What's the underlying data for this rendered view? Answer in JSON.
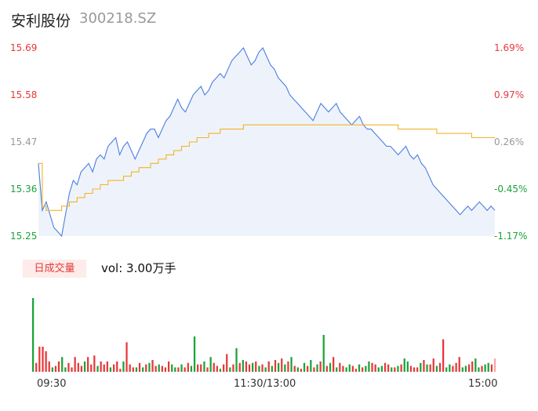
{
  "header": {
    "name": "安利股份",
    "code": "300218.SZ"
  },
  "colors": {
    "up": "#e5393b",
    "down": "#1aa33a",
    "price_line": "#4a7fe0",
    "avg_line": "#f2b32a",
    "neutral": "#999999"
  },
  "chart_data": [
    {
      "type": "line",
      "title": "",
      "y_left_ticks": [
        "15.69",
        "15.58",
        "15.47",
        "15.36",
        "15.25"
      ],
      "y_right_ticks": [
        "1.69%",
        "0.97%",
        "0.26%",
        "-0.45%",
        "-1.17%"
      ],
      "ylim": [
        15.25,
        15.69
      ],
      "x_ticks": [
        "09:30",
        "11:30/13:00",
        "15:00"
      ],
      "series": [
        {
          "key": "price",
          "values": [
            15.42,
            15.31,
            15.33,
            15.3,
            15.27,
            15.26,
            15.25,
            15.3,
            15.35,
            15.38,
            15.37,
            15.4,
            15.41,
            15.42,
            15.4,
            15.43,
            15.44,
            15.43,
            15.46,
            15.47,
            15.48,
            15.44,
            15.46,
            15.47,
            15.45,
            15.43,
            15.45,
            15.47,
            15.49,
            15.5,
            15.5,
            15.48,
            15.5,
            15.52,
            15.53,
            15.55,
            15.57,
            15.55,
            15.54,
            15.56,
            15.58,
            15.59,
            15.6,
            15.58,
            15.59,
            15.61,
            15.62,
            15.63,
            15.62,
            15.64,
            15.66,
            15.67,
            15.68,
            15.69,
            15.67,
            15.65,
            15.66,
            15.68,
            15.69,
            15.67,
            15.65,
            15.64,
            15.62,
            15.61,
            15.6,
            15.58,
            15.57,
            15.56,
            15.55,
            15.54,
            15.53,
            15.52,
            15.54,
            15.56,
            15.55,
            15.54,
            15.55,
            15.56,
            15.54,
            15.53,
            15.52,
            15.51,
            15.52,
            15.53,
            15.51,
            15.5,
            15.5,
            15.49,
            15.48,
            15.47,
            15.46,
            15.46,
            15.45,
            15.44,
            15.45,
            15.46,
            15.44,
            15.43,
            15.44,
            15.42,
            15.41,
            15.39,
            15.37,
            15.36,
            15.35,
            15.34,
            15.33,
            15.32,
            15.31,
            15.3,
            15.31,
            15.32,
            15.31,
            15.32,
            15.33,
            15.32,
            15.31,
            15.32,
            15.31
          ]
        },
        {
          "key": "average",
          "values": [
            15.42,
            15.32,
            15.31,
            15.31,
            15.31,
            15.31,
            15.32,
            15.32,
            15.33,
            15.33,
            15.34,
            15.34,
            15.35,
            15.35,
            15.36,
            15.36,
            15.37,
            15.37,
            15.38,
            15.38,
            15.38,
            15.38,
            15.39,
            15.39,
            15.4,
            15.4,
            15.41,
            15.41,
            15.41,
            15.42,
            15.42,
            15.43,
            15.43,
            15.44,
            15.44,
            15.45,
            15.45,
            15.46,
            15.46,
            15.47,
            15.47,
            15.48,
            15.48,
            15.48,
            15.49,
            15.49,
            15.49,
            15.5,
            15.5,
            15.5,
            15.5,
            15.5,
            15.5,
            15.51,
            15.51,
            15.51,
            15.51,
            15.51,
            15.51,
            15.51,
            15.51,
            15.51,
            15.51,
            15.51,
            15.51,
            15.51,
            15.51,
            15.51,
            15.51,
            15.51,
            15.51,
            15.51,
            15.51,
            15.51,
            15.51,
            15.51,
            15.51,
            15.51,
            15.51,
            15.51,
            15.51,
            15.51,
            15.51,
            15.51,
            15.51,
            15.51,
            15.51,
            15.51,
            15.51,
            15.51,
            15.51,
            15.51,
            15.51,
            15.5,
            15.5,
            15.5,
            15.5,
            15.5,
            15.5,
            15.5,
            15.5,
            15.5,
            15.5,
            15.49,
            15.49,
            15.49,
            15.49,
            15.49,
            15.49,
            15.49,
            15.49,
            15.49,
            15.48,
            15.48,
            15.48,
            15.48,
            15.48,
            15.48,
            15.48
          ]
        }
      ]
    },
    {
      "type": "bar",
      "title": "日成交量",
      "label": "vol: 3.00万手",
      "series": [
        {
          "key": "volume",
          "values": [
            100,
            12,
            34,
            34,
            28,
            14,
            6,
            8,
            14,
            20,
            6,
            12,
            6,
            20,
            12,
            8,
            14,
            20,
            10,
            22,
            8,
            14,
            10,
            14,
            6,
            10,
            14,
            4,
            14,
            40,
            10,
            6,
            6,
            12,
            6,
            10,
            12,
            16,
            8,
            10,
            8,
            6,
            14,
            10,
            6,
            6,
            10,
            6,
            12,
            8,
            48,
            10,
            10,
            14,
            6,
            20,
            12,
            8,
            4,
            10,
            24,
            6,
            10,
            32,
            12,
            16,
            14,
            10,
            12,
            14,
            8,
            10,
            6,
            14,
            8,
            16,
            12,
            18,
            10,
            14,
            20,
            8,
            6,
            4,
            12,
            8,
            16,
            6,
            10,
            14,
            50,
            8,
            12,
            20,
            6,
            12,
            8,
            6,
            10,
            8,
            4,
            10,
            6,
            8,
            14,
            12,
            10,
            6,
            8,
            12,
            10,
            6,
            6,
            8,
            10,
            18,
            14,
            8,
            6,
            6,
            12,
            16,
            10,
            10,
            18,
            8,
            12,
            44,
            6,
            10,
            8,
            12,
            20,
            6,
            8,
            10,
            14,
            18,
            6,
            8,
            10,
            12,
            10,
            18
          ],
          "colors": [
            "d",
            "u",
            "u",
            "u",
            "u",
            "u",
            "d",
            "u",
            "u",
            "d",
            "d",
            "u",
            "u",
            "u",
            "u",
            "u",
            "d",
            "u",
            "u",
            "u",
            "d",
            "u",
            "u",
            "u",
            "d",
            "u",
            "u",
            "u",
            "d",
            "u",
            "u",
            "u",
            "d",
            "u",
            "d",
            "u",
            "d",
            "u",
            "u",
            "d",
            "u",
            "u",
            "u",
            "d",
            "d",
            "u",
            "d",
            "u",
            "u",
            "d",
            "d",
            "u",
            "u",
            "d",
            "u",
            "d",
            "u",
            "u",
            "d",
            "u",
            "u",
            "d",
            "u",
            "d",
            "u",
            "d",
            "u",
            "u",
            "d",
            "u",
            "d",
            "u",
            "d",
            "u",
            "d",
            "u",
            "d",
            "u",
            "d",
            "u",
            "d",
            "u",
            "d",
            "u",
            "d",
            "u",
            "d",
            "u",
            "d",
            "u",
            "d",
            "u",
            "d",
            "u",
            "d",
            "u",
            "u",
            "d",
            "d",
            "u",
            "u",
            "d",
            "u",
            "d",
            "d",
            "u",
            "u",
            "d",
            "d",
            "u",
            "u",
            "d",
            "u",
            "d",
            "u",
            "d",
            "d",
            "u",
            "u",
            "u",
            "d",
            "u",
            "d",
            "u",
            "u",
            "d",
            "u",
            "u",
            "d",
            "d",
            "u",
            "u",
            "u",
            "d",
            "d",
            "u",
            "u",
            "d",
            "d",
            "u",
            "d",
            "d",
            "u"
          ]
        }
      ]
    }
  ]
}
